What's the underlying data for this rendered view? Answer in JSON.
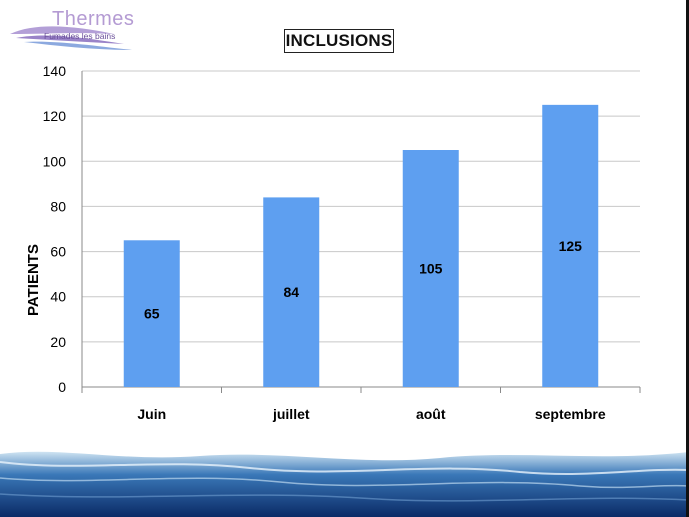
{
  "logo": {
    "name": "Thermes",
    "subtitle": "Fumades les bains"
  },
  "chart_data": {
    "type": "bar",
    "title": "INCLUSIONS",
    "xlabel": "",
    "ylabel": "PATIENTS",
    "categories": [
      "Juin",
      "juillet",
      "août",
      "septembre"
    ],
    "values": [
      65,
      84,
      105,
      125
    ],
    "data_labels": [
      "65",
      "84",
      "105",
      "125"
    ],
    "ylim": [
      0,
      140
    ],
    "yticks": [
      "0",
      "20",
      "40",
      "60",
      "80",
      "100",
      "120",
      "140"
    ],
    "grid": true,
    "legend": "none",
    "bar_color": "#5e9ff0"
  }
}
